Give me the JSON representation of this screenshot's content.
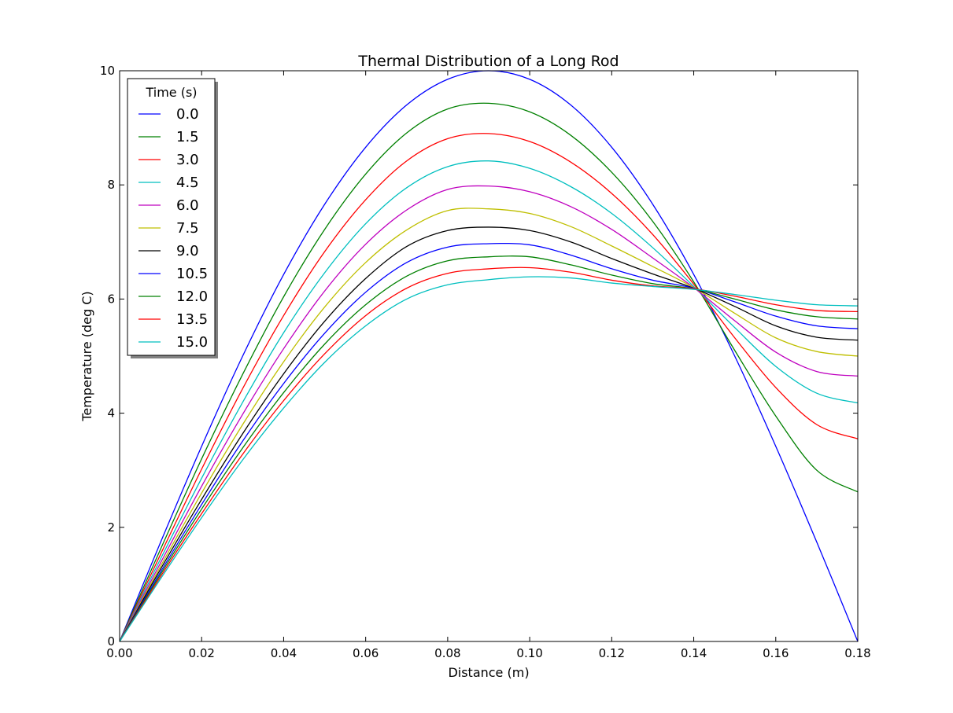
{
  "chart_data": {
    "type": "line",
    "title": "Thermal Distribution of a Long Rod",
    "xlabel": "Distance (m)",
    "ylabel": "Temperature (deg C)",
    "xlim": [
      0,
      0.18
    ],
    "ylim": [
      0,
      10
    ],
    "x_ticks": [
      "0.00",
      "0.02",
      "0.04",
      "0.06",
      "0.08",
      "0.10",
      "0.12",
      "0.14",
      "0.16",
      "0.18"
    ],
    "y_ticks": [
      "0",
      "2",
      "4",
      "6",
      "8",
      "10"
    ],
    "grid": false,
    "legend": {
      "title": "Time (s)",
      "placement": "top-left"
    },
    "x": [
      0,
      0.01,
      0.02,
      0.03,
      0.04,
      0.05,
      0.06,
      0.07,
      0.08,
      0.09,
      0.1,
      0.11,
      0.12,
      0.13,
      0.14,
      0.15,
      0.16,
      0.17,
      0.18
    ],
    "series": [
      {
        "name": "0.0",
        "color": "#0000ff",
        "values": [
          0,
          1.74,
          3.42,
          5.0,
          6.43,
          7.66,
          8.66,
          9.4,
          9.85,
          10.0,
          9.85,
          9.4,
          8.66,
          7.66,
          6.43,
          5.0,
          3.42,
          1.74,
          0
        ]
      },
      {
        "name": "1.5",
        "color": "#008000",
        "values": [
          0,
          1.62,
          3.2,
          4.68,
          6.04,
          7.22,
          8.19,
          8.91,
          9.33,
          9.43,
          9.28,
          8.87,
          8.22,
          7.36,
          6.3,
          5.1,
          3.95,
          3.0,
          2.62
        ]
      },
      {
        "name": "3.0",
        "color": "#ff0000",
        "values": [
          0,
          1.53,
          3.02,
          4.43,
          5.71,
          6.83,
          7.74,
          8.42,
          8.81,
          8.9,
          8.76,
          8.4,
          7.85,
          7.13,
          6.26,
          5.32,
          4.45,
          3.8,
          3.55
        ]
      },
      {
        "name": "4.5",
        "color": "#00bfbf",
        "values": [
          0,
          1.45,
          2.86,
          4.19,
          5.41,
          6.46,
          7.32,
          7.95,
          8.32,
          8.42,
          8.29,
          7.97,
          7.5,
          6.9,
          6.22,
          5.5,
          4.82,
          4.35,
          4.18
        ]
      },
      {
        "name": "6.0",
        "color": "#bf00bf",
        "values": [
          0,
          1.38,
          2.72,
          3.98,
          5.13,
          6.14,
          6.96,
          7.56,
          7.92,
          7.98,
          7.88,
          7.62,
          7.22,
          6.72,
          6.2,
          5.62,
          5.07,
          4.73,
          4.65
        ]
      },
      {
        "name": "7.5",
        "color": "#bfbf00",
        "values": [
          0,
          1.32,
          2.6,
          3.8,
          4.9,
          5.86,
          6.64,
          7.21,
          7.55,
          7.58,
          7.5,
          7.27,
          6.93,
          6.57,
          6.2,
          5.75,
          5.32,
          5.08,
          5.0
        ]
      },
      {
        "name": "9.0",
        "color": "#000000",
        "values": [
          0,
          1.27,
          2.49,
          3.64,
          4.69,
          5.61,
          6.36,
          6.92,
          7.2,
          7.26,
          7.2,
          7.0,
          6.71,
          6.44,
          6.19,
          5.87,
          5.53,
          5.33,
          5.28
        ]
      },
      {
        "name": "10.5",
        "color": "#0000ff",
        "values": [
          0,
          1.22,
          2.4,
          3.51,
          4.52,
          5.4,
          6.12,
          6.64,
          6.91,
          6.97,
          6.95,
          6.77,
          6.53,
          6.33,
          6.19,
          5.95,
          5.7,
          5.53,
          5.48
        ]
      },
      {
        "name": "12.0",
        "color": "#008000",
        "values": [
          0,
          1.18,
          2.32,
          3.39,
          4.36,
          5.21,
          5.9,
          6.4,
          6.67,
          6.74,
          6.74,
          6.6,
          6.42,
          6.27,
          6.18,
          6.0,
          5.81,
          5.69,
          5.65
        ]
      },
      {
        "name": "13.5",
        "color": "#ff0000",
        "values": [
          0,
          1.14,
          2.24,
          3.28,
          4.22,
          5.04,
          5.71,
          6.19,
          6.45,
          6.53,
          6.55,
          6.47,
          6.33,
          6.23,
          6.18,
          6.05,
          5.9,
          5.8,
          5.78
        ]
      },
      {
        "name": "15.0",
        "color": "#00bfbf",
        "values": [
          0,
          1.1,
          2.17,
          3.18,
          4.09,
          4.89,
          5.53,
          6.0,
          6.25,
          6.34,
          6.39,
          6.37,
          6.28,
          6.22,
          6.17,
          6.08,
          5.98,
          5.9,
          5.88
        ]
      }
    ]
  }
}
